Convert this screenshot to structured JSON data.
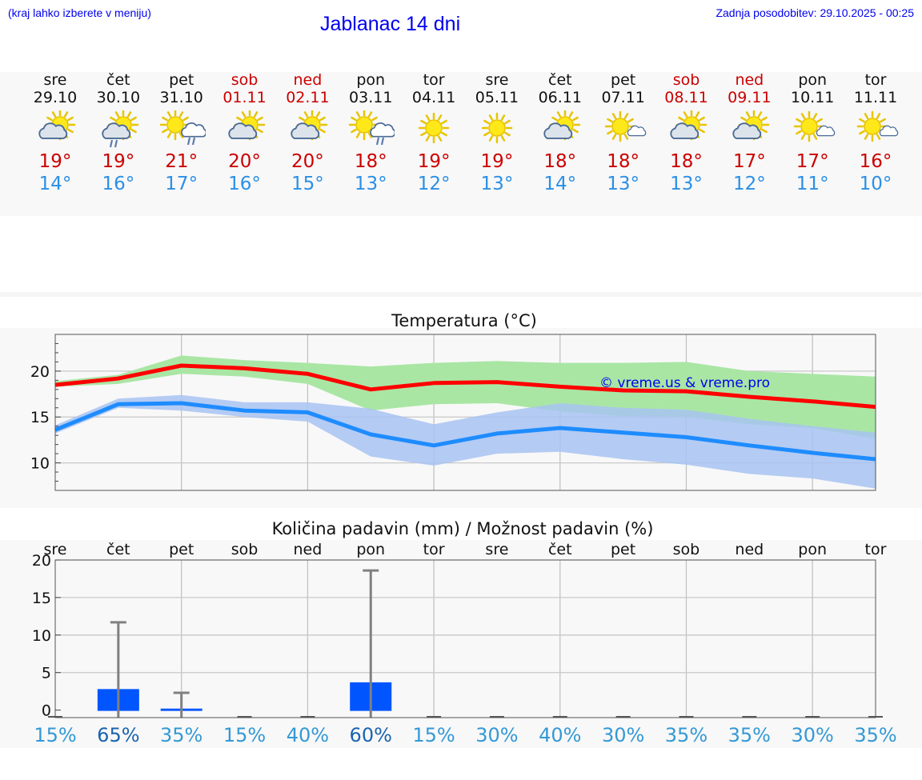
{
  "header": {
    "hint": "(kraj lahko izberete v meniju)",
    "title": "Jablanac 14 dni",
    "updated": "Zadnja posodobitev: 29.10.2025 - 00:25"
  },
  "days": [
    {
      "name": "sre",
      "date": "29.10",
      "weekend": false,
      "icon": "partly-cloudy-icon",
      "tmax": "19°",
      "tmin": "14°"
    },
    {
      "name": "čet",
      "date": "30.10",
      "weekend": false,
      "icon": "partly-cloudy-rain-icon",
      "tmax": "19°",
      "tmin": "16°"
    },
    {
      "name": "pet",
      "date": "31.10",
      "weekend": false,
      "icon": "sun-cloud-rain-icon",
      "tmax": "21°",
      "tmin": "17°"
    },
    {
      "name": "sob",
      "date": "01.11",
      "weekend": true,
      "icon": "partly-cloudy-icon",
      "tmax": "20°",
      "tmin": "16°"
    },
    {
      "name": "ned",
      "date": "02.11",
      "weekend": true,
      "icon": "partly-cloudy-icon",
      "tmax": "20°",
      "tmin": "15°"
    },
    {
      "name": "pon",
      "date": "03.11",
      "weekend": false,
      "icon": "sun-cloud-rain-icon",
      "tmax": "18°",
      "tmin": "13°"
    },
    {
      "name": "tor",
      "date": "04.11",
      "weekend": false,
      "icon": "sun-icon",
      "tmax": "19°",
      "tmin": "12°"
    },
    {
      "name": "sre",
      "date": "05.11",
      "weekend": false,
      "icon": "sun-icon",
      "tmax": "19°",
      "tmin": "13°"
    },
    {
      "name": "čet",
      "date": "06.11",
      "weekend": false,
      "icon": "partly-cloudy-icon",
      "tmax": "18°",
      "tmin": "14°"
    },
    {
      "name": "pet",
      "date": "07.11",
      "weekend": false,
      "icon": "sun-small-cloud-icon",
      "tmax": "18°",
      "tmin": "13°"
    },
    {
      "name": "sob",
      "date": "08.11",
      "weekend": true,
      "icon": "partly-cloudy-icon",
      "tmax": "18°",
      "tmin": "13°"
    },
    {
      "name": "ned",
      "date": "09.11",
      "weekend": true,
      "icon": "partly-cloudy-icon",
      "tmax": "17°",
      "tmin": "12°"
    },
    {
      "name": "pon",
      "date": "10.11",
      "weekend": false,
      "icon": "sun-small-cloud-icon",
      "tmax": "17°",
      "tmin": "11°"
    },
    {
      "name": "tor",
      "date": "11.11",
      "weekend": false,
      "icon": "sun-small-cloud-icon",
      "tmax": "16°",
      "tmin": "10°"
    }
  ],
  "chart_data": [
    {
      "type": "line",
      "title": "Temperatura (°C)",
      "watermark": "© vreme.us & vreme.pro",
      "x": [
        0,
        1,
        2,
        3,
        4,
        5,
        6,
        7,
        8,
        9,
        10,
        11,
        12,
        13
      ],
      "ylim": [
        7,
        24
      ],
      "yticks": [
        10,
        15,
        20
      ],
      "series": [
        {
          "name": "max",
          "color": "#ff0000",
          "values": [
            18.5,
            19.2,
            20.6,
            20.3,
            19.7,
            18.0,
            18.7,
            18.8,
            18.3,
            17.9,
            17.8,
            17.2,
            16.7,
            16.1
          ],
          "band_low": [
            18.3,
            18.6,
            19.7,
            19.4,
            18.6,
            15.7,
            16.4,
            16.5,
            15.6,
            15.1,
            15.0,
            14.2,
            13.8,
            12.6
          ],
          "band_high": [
            18.9,
            19.6,
            21.7,
            21.2,
            20.9,
            20.5,
            20.9,
            21.1,
            20.9,
            20.9,
            21.0,
            20.0,
            19.7,
            19.4
          ],
          "band_color": "#a9e6a4"
        },
        {
          "name": "min",
          "color": "#1e8cff",
          "values": [
            13.6,
            16.4,
            16.5,
            15.7,
            15.5,
            13.1,
            11.9,
            13.2,
            13.8,
            13.3,
            12.8,
            11.9,
            11.1,
            10.4
          ],
          "band_low": [
            13.2,
            16.0,
            15.7,
            15.0,
            14.5,
            10.7,
            9.7,
            11.0,
            11.2,
            10.4,
            9.8,
            8.8,
            8.3,
            7.2
          ],
          "band_high": [
            14.1,
            17.0,
            17.4,
            16.6,
            16.6,
            15.9,
            14.2,
            15.5,
            16.5,
            16.0,
            15.8,
            14.8,
            14.0,
            13.3
          ],
          "band_color": "#a8c3f2"
        }
      ],
      "overlap_color": "#74c09a"
    },
    {
      "type": "bar",
      "title": "Količina padavin (mm) / Možnost padavin (%)",
      "categories": [
        "sre",
        "čet",
        "pet",
        "sob",
        "ned",
        "pon",
        "tor",
        "sre",
        "čet",
        "pet",
        "sob",
        "ned",
        "pon",
        "tor"
      ],
      "values": [
        0,
        2.8,
        0.2,
        0,
        0,
        3.7,
        0,
        0,
        0,
        0,
        0,
        0,
        0,
        0
      ],
      "error_high": [
        0,
        11.7,
        2.3,
        0,
        0,
        18.6,
        0,
        0,
        0,
        0,
        0,
        0,
        0,
        0
      ],
      "probability": [
        "15%",
        "65%",
        "35%",
        "15%",
        "40%",
        "60%",
        "15%",
        "30%",
        "40%",
        "30%",
        "35%",
        "35%",
        "30%",
        "35%"
      ],
      "prob_values": [
        15,
        65,
        35,
        15,
        40,
        60,
        15,
        30,
        40,
        30,
        35,
        35,
        30,
        35
      ],
      "ylim": [
        -1,
        20
      ],
      "yticks": [
        0,
        5,
        10,
        15,
        20
      ],
      "bar_color": "#0055ff",
      "error_color": "#808080",
      "prob_color_high": "#1a63b0",
      "prob_color_low": "#3399d6"
    }
  ]
}
